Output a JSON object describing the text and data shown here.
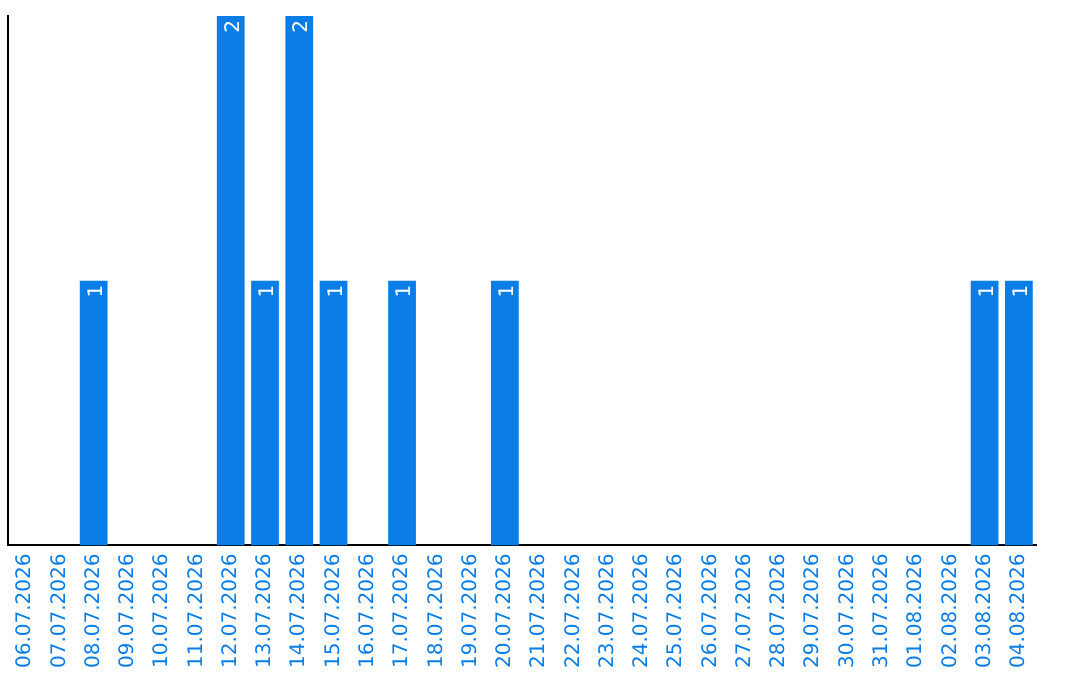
{
  "chart_data": {
    "type": "bar",
    "categories": [
      "06.07.2026",
      "07.07.2026",
      "08.07.2026",
      "09.07.2026",
      "10.07.2026",
      "11.07.2026",
      "12.07.2026",
      "13.07.2026",
      "14.07.2026",
      "15.07.2026",
      "16.07.2026",
      "17.07.2026",
      "18.07.2026",
      "19.07.2026",
      "20.07.2026",
      "21.07.2026",
      "22.07.2026",
      "23.07.2026",
      "24.07.2026",
      "25.07.2026",
      "26.07.2026",
      "27.07.2026",
      "28.07.2026",
      "29.07.2026",
      "30.07.2026",
      "31.07.2026",
      "01.08.2026",
      "02.08.2026",
      "03.08.2026",
      "04.08.2026"
    ],
    "values": [
      null,
      null,
      1,
      null,
      null,
      null,
      2,
      1,
      2,
      1,
      null,
      1,
      null,
      null,
      1,
      null,
      null,
      null,
      null,
      null,
      null,
      null,
      null,
      null,
      null,
      null,
      null,
      null,
      1,
      1
    ],
    "data_labels": true,
    "color": "#0a7ee6",
    "grid": false,
    "legend": false,
    "tick_labels": "x"
  }
}
